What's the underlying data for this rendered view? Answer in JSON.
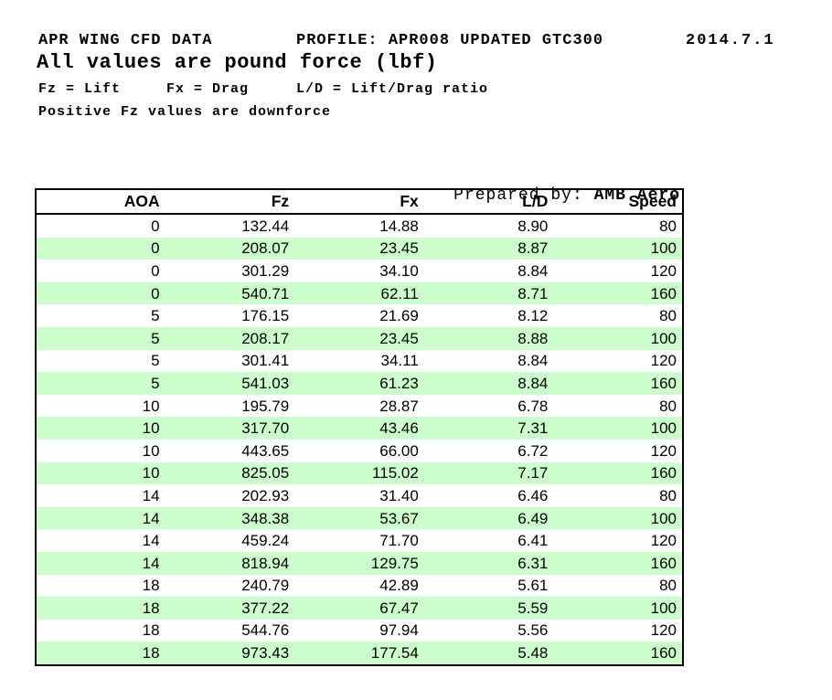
{
  "header": {
    "line1_left": "APR WING CFD DATA",
    "line1_middle": "PROFILE: APR008 UPDATED GTC300",
    "line1_right": "2014.7.1",
    "line2": "All values are pound force (lbf)",
    "line3_seg1": "Fz = Lift",
    "line3_seg2": "Fx = Drag",
    "line3_seg3": "L/D = Lift/Drag ratio",
    "line4": "Positive Fz values are downforce"
  },
  "prepared_by": {
    "label": "Prepared by: ",
    "value": "AMB Aero"
  },
  "table": {
    "columns": [
      "AOA",
      "Fz",
      "Fx",
      "L/D",
      "Speed"
    ],
    "rows": [
      [
        "0",
        "132.44",
        "14.88",
        "8.90",
        "80"
      ],
      [
        "0",
        "208.07",
        "23.45",
        "8.87",
        "100"
      ],
      [
        "0",
        "301.29",
        "34.10",
        "8.84",
        "120"
      ],
      [
        "0",
        "540.71",
        "62.11",
        "8.71",
        "160"
      ],
      [
        "5",
        "176.15",
        "21.69",
        "8.12",
        "80"
      ],
      [
        "5",
        "208.17",
        "23.45",
        "8.88",
        "100"
      ],
      [
        "5",
        "301.41",
        "34.11",
        "8.84",
        "120"
      ],
      [
        "5",
        "541.03",
        "61.23",
        "8.84",
        "160"
      ],
      [
        "10",
        "195.79",
        "28.87",
        "6.78",
        "80"
      ],
      [
        "10",
        "317.70",
        "43.46",
        "7.31",
        "100"
      ],
      [
        "10",
        "443.65",
        "66.00",
        "6.72",
        "120"
      ],
      [
        "10",
        "825.05",
        "115.02",
        "7.17",
        "160"
      ],
      [
        "14",
        "202.93",
        "31.40",
        "6.46",
        "80"
      ],
      [
        "14",
        "348.38",
        "53.67",
        "6.49",
        "100"
      ],
      [
        "14",
        "459.24",
        "71.70",
        "6.41",
        "120"
      ],
      [
        "14",
        "818.94",
        "129.75",
        "6.31",
        "160"
      ],
      [
        "18",
        "240.79",
        "42.89",
        "5.61",
        "80"
      ],
      [
        "18",
        "377.22",
        "67.47",
        "5.59",
        "100"
      ],
      [
        "18",
        "544.76",
        "97.94",
        "5.56",
        "120"
      ],
      [
        "18",
        "973.43",
        "177.54",
        "5.48",
        "160"
      ]
    ]
  },
  "colors": {
    "stripe_green": "#ccffcc",
    "border": "#000000",
    "text": "#000000",
    "background": "#ffffff"
  }
}
